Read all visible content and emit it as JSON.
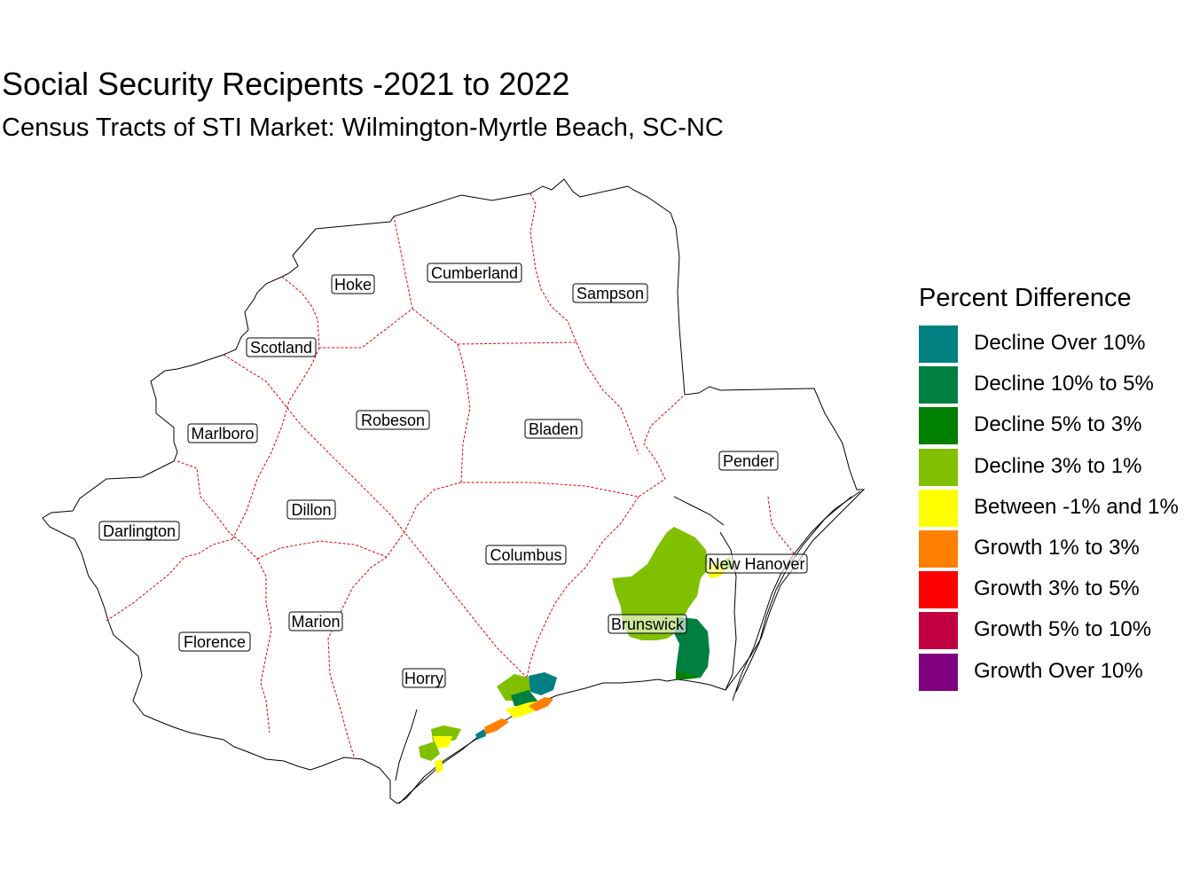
{
  "title": "Social Security Recipents -2021 to 2022",
  "subtitle": "Census Tracts of STI Market: Wilmington-Myrtle Beach, SC-NC",
  "legend": {
    "title": "Percent Difference",
    "items": [
      {
        "label": "Decline Over 10%",
        "color": "#008080"
      },
      {
        "label": "Decline 10% to 5%",
        "color": "#008040"
      },
      {
        "label": "Decline 5% to 3%",
        "color": "#008000"
      },
      {
        "label": "Decline 3% to 1%",
        "color": "#80C000"
      },
      {
        "label": "Between -1% and 1%",
        "color": "#FFFF00"
      },
      {
        "label": "Growth 1% to 3%",
        "color": "#FF8000"
      },
      {
        "label": "Growth 3% to 5%",
        "color": "#FF0000"
      },
      {
        "label": "Growth 5% to 10%",
        "color": "#C00040"
      },
      {
        "label": "Growth Over 10%",
        "color": "#800080"
      }
    ]
  },
  "counties": [
    {
      "name": "Hoke"
    },
    {
      "name": "Cumberland"
    },
    {
      "name": "Sampson"
    },
    {
      "name": "Scotland"
    },
    {
      "name": "Robeson"
    },
    {
      "name": "Bladen"
    },
    {
      "name": "Marlboro"
    },
    {
      "name": "Pender"
    },
    {
      "name": "Dillon"
    },
    {
      "name": "Darlington"
    },
    {
      "name": "Columbus"
    },
    {
      "name": "New Hanover"
    },
    {
      "name": "Marion"
    },
    {
      "name": "Brunswick"
    },
    {
      "name": "Florence"
    },
    {
      "name": "Horry"
    }
  ]
}
